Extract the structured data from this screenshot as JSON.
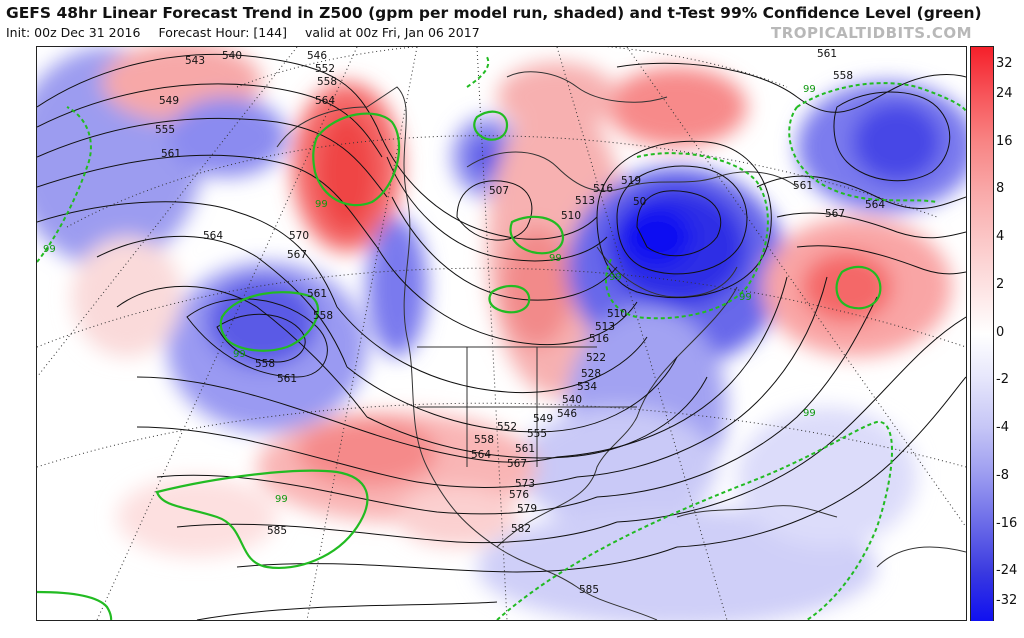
{
  "title": "GEFS 48hr Linear Forecast Trend in Z500 (gpm per model run, shaded) and t-Test 99% Confidence Level (green)",
  "subtitle": {
    "init": "Init: 00z Dec 31 2016",
    "forecast_hour": "Forecast Hour: [144]",
    "valid": "valid at 00z Fri, Jan 06 2017"
  },
  "brand": "TROPICALTIDBITS.COM",
  "colorbar": {
    "labels": [
      "32",
      "24",
      "16",
      "8",
      "4",
      "2",
      "0",
      "-2",
      "-4",
      "-8",
      "-16",
      "-24",
      "-32"
    ],
    "colors": [
      "#f5202a",
      "#f7555a",
      "#f88585",
      "#f9a8a8",
      "#fbc6c6",
      "#fde2e2",
      "#ffffff",
      "#e4e4fb",
      "#c4c4f6",
      "#9a9af0",
      "#6a6ae8",
      "#3a3ae0",
      "#1010f0"
    ]
  },
  "contour_labels": {
    "nw": [
      "543",
      "540",
      "546",
      "549",
      "552",
      "558",
      "555",
      "564",
      "561"
    ],
    "pacific": [
      "564",
      "570",
      "567",
      "561",
      "558",
      "558",
      "561",
      "585"
    ],
    "canada": [
      "507",
      "516",
      "513",
      "510",
      "519",
      "50"
    ],
    "central": [
      "510",
      "513",
      "516",
      "522",
      "528",
      "534",
      "540",
      "546",
      "549",
      "552",
      "555",
      "558",
      "561",
      "564",
      "567",
      "573",
      "576",
      "579",
      "582"
    ],
    "atlantic": [
      "561",
      "558",
      "561",
      "567",
      "564"
    ],
    "south": [
      "585"
    ]
  },
  "confidence_labels": [
    "99",
    "99",
    "99",
    "99",
    "99",
    "99",
    "99",
    "99",
    "99"
  ]
}
